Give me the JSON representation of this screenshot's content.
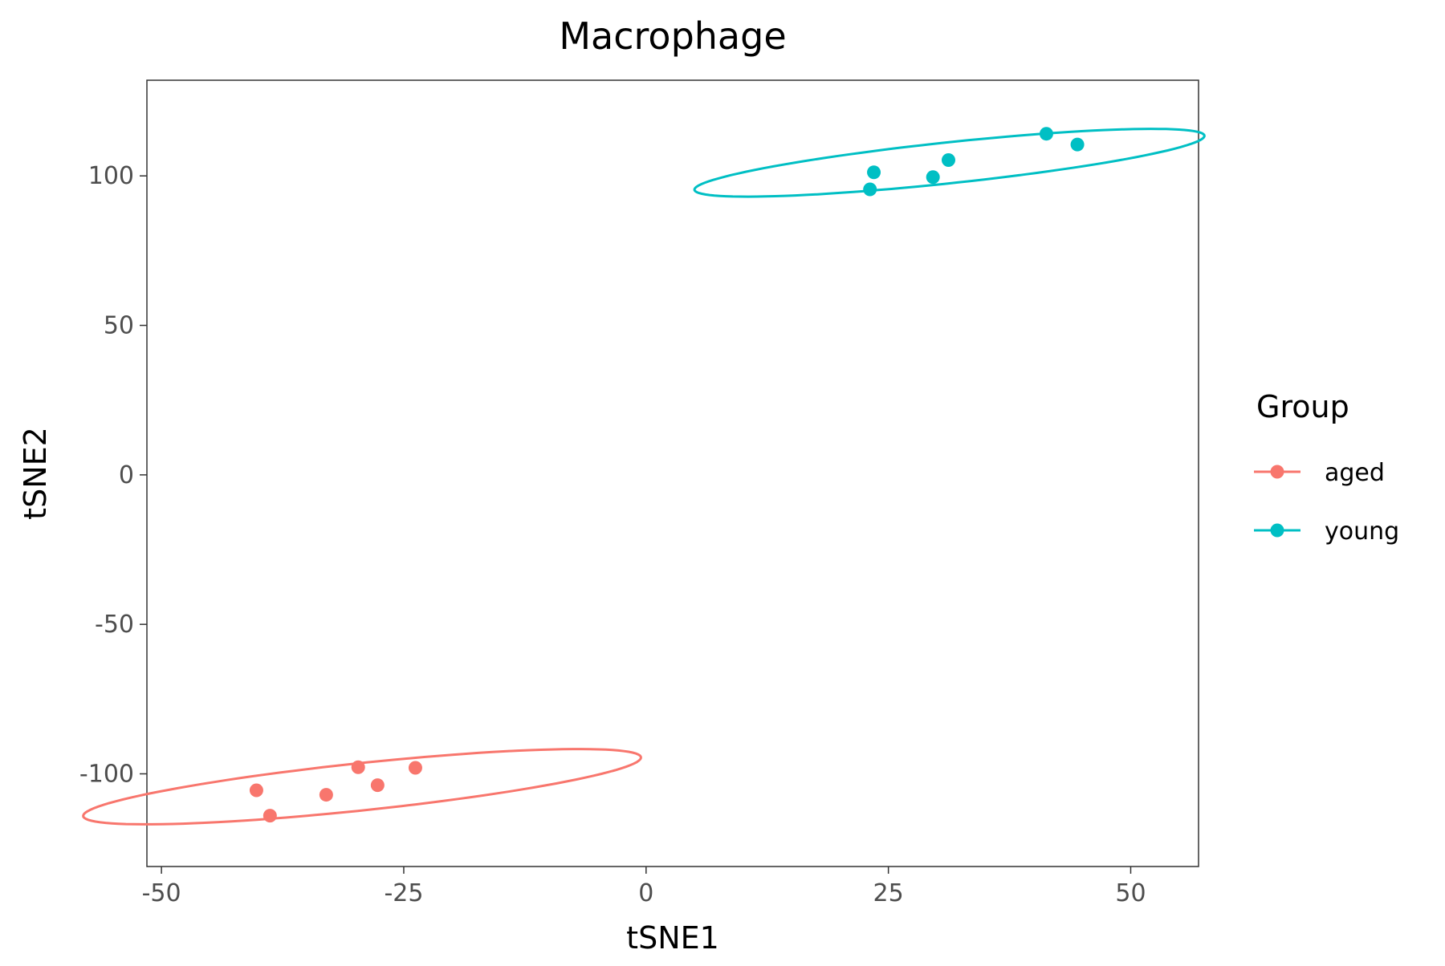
{
  "chart_data": {
    "type": "scatter",
    "title": "Macrophage",
    "xlabel": "tSNE1",
    "ylabel": "tSNE2",
    "xlim": [
      -51.5,
      57
    ],
    "ylim": [
      -131,
      132
    ],
    "x_ticks": [
      -50,
      -25,
      0,
      25,
      50
    ],
    "y_ticks": [
      -100,
      -50,
      0,
      50,
      100
    ],
    "x_tick_labels": [
      "-50",
      "-25",
      "0",
      "25",
      "50"
    ],
    "y_tick_labels": [
      "-100",
      "-50",
      "0",
      "50",
      "100"
    ],
    "grid": false,
    "legend": {
      "title": "Group",
      "placement": "right"
    },
    "series": [
      {
        "name": "aged",
        "color": "#F8766D",
        "points": [
          {
            "x": -40.2,
            "y": -105.5
          },
          {
            "x": -38.8,
            "y": -114.0
          },
          {
            "x": -33.0,
            "y": -107.0
          },
          {
            "x": -29.7,
            "y": -97.8
          },
          {
            "x": -27.7,
            "y": -103.8
          },
          {
            "x": -23.8,
            "y": -98.0
          }
        ],
        "ellipse": {
          "cx": -29.3,
          "cy": -104.3,
          "rx": 30.5,
          "ry": 7.5,
          "angle_deg": 20
        }
      },
      {
        "name": "young",
        "color": "#00BFC4",
        "points": [
          {
            "x": 23.1,
            "y": 95.5
          },
          {
            "x": 23.5,
            "y": 101.2
          },
          {
            "x": 29.6,
            "y": 99.6
          },
          {
            "x": 31.2,
            "y": 105.3
          },
          {
            "x": 41.3,
            "y": 114.1
          },
          {
            "x": 44.5,
            "y": 110.5
          }
        ],
        "ellipse": {
          "cx": 31.3,
          "cy": 104.4,
          "rx": 27.9,
          "ry": 6.5,
          "angle_deg": 20
        }
      }
    ]
  }
}
